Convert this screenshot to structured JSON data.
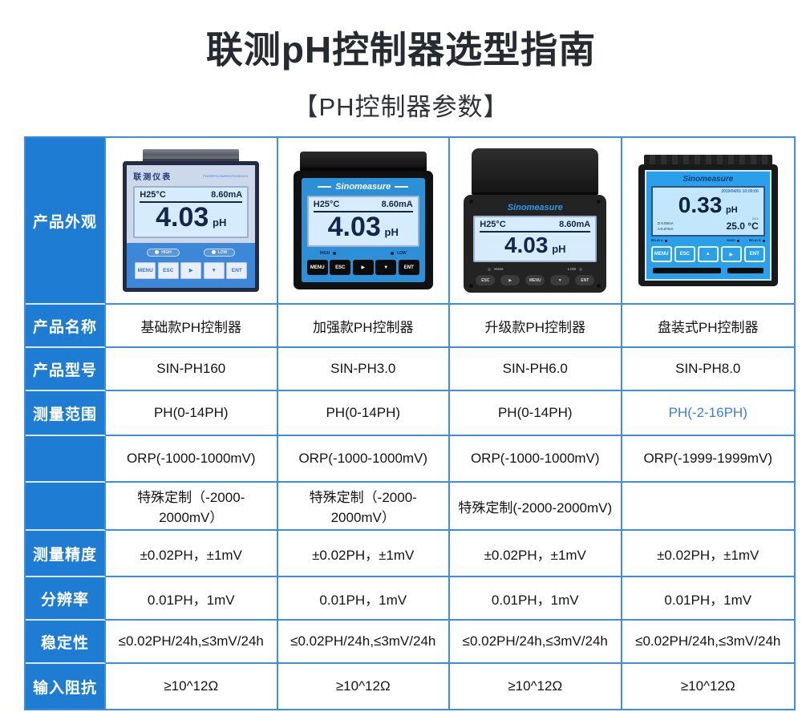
{
  "page": {
    "title": "联测pH控制器选型指南",
    "subtitle": "【PH控制器参数】"
  },
  "colors": {
    "header_blue": "#1f7cd3",
    "border_blue": "#3e8ede",
    "accent_text_blue": "#3a7fd8",
    "device_panel_blue": "#2d8fd6",
    "lcd_blue": "#d6ecfd"
  },
  "table": {
    "row_headers": [
      "产品外观",
      "产品名称",
      "产品型号",
      "测量范围",
      "",
      "",
      "测量精度",
      "分辨率",
      "稳定性",
      "输入阻抗"
    ],
    "products": [
      {
        "name": "基础款PH控制器",
        "model": "SIN-PH160",
        "range_ph": "PH(0-14PH)",
        "range_orp": "ORP(-1000-1000mV)",
        "range_custom": "特殊定制（-2000-2000mV）",
        "accuracy": "±0.02PH，±1mV",
        "resolution": "0.01PH，1mV",
        "stability": "≤0.02PH/24h,≤3mV/24h",
        "impedance": "≥10^12Ω",
        "device": {
          "brand": "联测仪表",
          "params": "PH/ORP/CON/RES/TDS/DO/CL",
          "lcd_temp": "H25°C",
          "lcd_current": "8.60mA",
          "lcd_value": "4.03",
          "lcd_unit": "pH",
          "high": "HIGH",
          "low": "LOW",
          "buttons": [
            "MENU",
            "ESC",
            "▶",
            "▼",
            "ENT"
          ]
        }
      },
      {
        "name": "加强款PH控制器",
        "model": "SIN-PH3.0",
        "range_ph": "PH(0-14PH)",
        "range_orp": "ORP(-1000-1000mV)",
        "range_custom": "特殊定制（-2000-2000mV）",
        "accuracy": "±0.02PH，±1mV",
        "resolution": "0.01PH，1mV",
        "stability": "≤0.02PH/24h,≤3mV/24h",
        "impedance": "≥10^12Ω",
        "device": {
          "brand": "Sinomeasure",
          "lcd_temp": "H25°C",
          "lcd_current": "8.60mA",
          "lcd_value": "4.03",
          "lcd_unit": "pH",
          "high": "HIGH",
          "low": "LOW",
          "buttons": [
            "MENU",
            "ESC",
            "▶",
            "▼",
            "ENT"
          ]
        }
      },
      {
        "name": "升级款PH控制器",
        "model": "SIN-PH6.0",
        "range_ph": "PH(0-14PH)",
        "range_orp": "ORP(-1000-1000mV)",
        "range_custom": "特殊定制(-2000-2000mV)",
        "accuracy": "±0.02PH，±1mV",
        "resolution": "0.01PH，1mV",
        "stability": "≤0.02PH/24h,≤3mV/24h",
        "impedance": "≥10^12Ω",
        "device": {
          "brand": "Sinomeasure",
          "lcd_temp": "H25°C",
          "lcd_current": "8.60mA",
          "lcd_value": "4.03",
          "lcd_unit": "pH",
          "high": "HIGH",
          "low": "LOW",
          "buttons": [
            "ESC",
            "▶",
            "MENU",
            "▼",
            "ENT"
          ]
        }
      },
      {
        "name": "盘装式PH控制器",
        "model": "SIN-PH8.0",
        "range_ph": "PH(-2-16PH)",
        "range_orp": "ORP(-1999-1999mV)",
        "range_custom": "",
        "accuracy": "±0.02PH，±1mV",
        "resolution": "0.01PH，1mV",
        "stability": "≤0.02PH/24h,≤3mV/24h",
        "impedance": "≥10^12Ω",
        "device": {
          "brand": "Sinomeasure",
          "lcd_datetime": "2019/04/01 10:00:00",
          "lcd_value": "0.33",
          "lcd_unit": "pH",
          "lcd_mode": "M11",
          "lcd_out1": "D 8.00mA",
          "lcd_out2": "A:0.07mA",
          "lcd_temp": "25.0 °C",
          "relay_a": "RELAY A",
          "wash": "WASH",
          "relay_b": "RELAY B",
          "buttons": [
            "MENU",
            "ESC",
            "▲",
            "▶",
            "ENT"
          ]
        }
      }
    ]
  }
}
